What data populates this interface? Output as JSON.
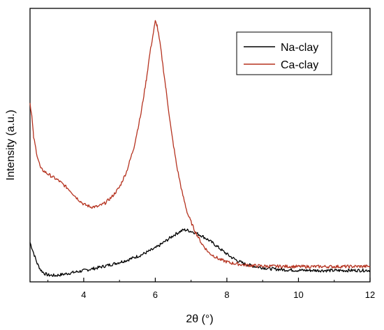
{
  "chart_data": {
    "type": "line",
    "xlabel": "2θ (°)",
    "ylabel": "Intensity (a.u.)",
    "xlim": [
      2.5,
      12
    ],
    "ylim": [
      0,
      100
    ],
    "x_ticks": [
      4,
      6,
      8,
      10,
      12
    ],
    "x_tick_labels": [
      "4",
      "6",
      "8",
      "10",
      12
    ],
    "y_ticks_shown": false,
    "grid": false,
    "legend_position": "top-right",
    "series": [
      {
        "name": "Na-clay",
        "color": "#000000",
        "points": [
          [
            2.5,
            15
          ],
          [
            2.6,
            11
          ],
          [
            2.7,
            7
          ],
          [
            2.8,
            4.5
          ],
          [
            2.9,
            3.2
          ],
          [
            3.0,
            2.6
          ],
          [
            3.2,
            2.4
          ],
          [
            3.4,
            2.8
          ],
          [
            3.6,
            3.3
          ],
          [
            3.8,
            3.8
          ],
          [
            4.0,
            4.3
          ],
          [
            4.4,
            5.4
          ],
          [
            4.8,
            6.7
          ],
          [
            5.2,
            8.2
          ],
          [
            5.6,
            10.2
          ],
          [
            6.0,
            12.8
          ],
          [
            6.3,
            15.6
          ],
          [
            6.5,
            17.6
          ],
          [
            6.7,
            19.2
          ],
          [
            6.8,
            19.8
          ],
          [
            6.9,
            19.6
          ],
          [
            7.1,
            18.8
          ],
          [
            7.3,
            17.5
          ],
          [
            7.5,
            15.8
          ],
          [
            7.7,
            13.8
          ],
          [
            7.9,
            11.6
          ],
          [
            8.1,
            9.6
          ],
          [
            8.3,
            8.0
          ],
          [
            8.5,
            6.8
          ],
          [
            8.8,
            5.8
          ],
          [
            9.2,
            5.0
          ],
          [
            9.6,
            4.6
          ],
          [
            10.0,
            4.4
          ],
          [
            11.0,
            4.3
          ],
          [
            12.0,
            4.4
          ]
        ]
      },
      {
        "name": "Ca-clay",
        "color": "#b5321f",
        "points": [
          [
            2.5,
            68
          ],
          [
            2.55,
            63
          ],
          [
            2.6,
            55
          ],
          [
            2.7,
            48
          ],
          [
            2.8,
            43
          ],
          [
            3.0,
            41
          ],
          [
            3.3,
            38.5
          ],
          [
            3.6,
            35
          ],
          [
            3.8,
            32
          ],
          [
            4.0,
            29.5
          ],
          [
            4.2,
            28.5
          ],
          [
            4.4,
            28.6
          ],
          [
            4.6,
            30
          ],
          [
            4.8,
            32.5
          ],
          [
            5.0,
            36
          ],
          [
            5.2,
            42
          ],
          [
            5.4,
            51
          ],
          [
            5.6,
            64
          ],
          [
            5.75,
            77
          ],
          [
            5.85,
            87
          ],
          [
            5.95,
            95
          ],
          [
            6.0,
            99
          ],
          [
            6.05,
            97.5
          ],
          [
            6.15,
            89
          ],
          [
            6.3,
            73
          ],
          [
            6.45,
            57
          ],
          [
            6.6,
            44
          ],
          [
            6.75,
            34
          ],
          [
            6.9,
            26
          ],
          [
            7.1,
            19.5
          ],
          [
            7.3,
            14.5
          ],
          [
            7.5,
            11
          ],
          [
            7.8,
            8.5
          ],
          [
            8.1,
            7.2
          ],
          [
            8.5,
            6.4
          ],
          [
            9.0,
            6.0
          ],
          [
            10.0,
            5.8
          ],
          [
            11.0,
            5.8
          ],
          [
            12.0,
            5.9
          ]
        ]
      }
    ]
  }
}
